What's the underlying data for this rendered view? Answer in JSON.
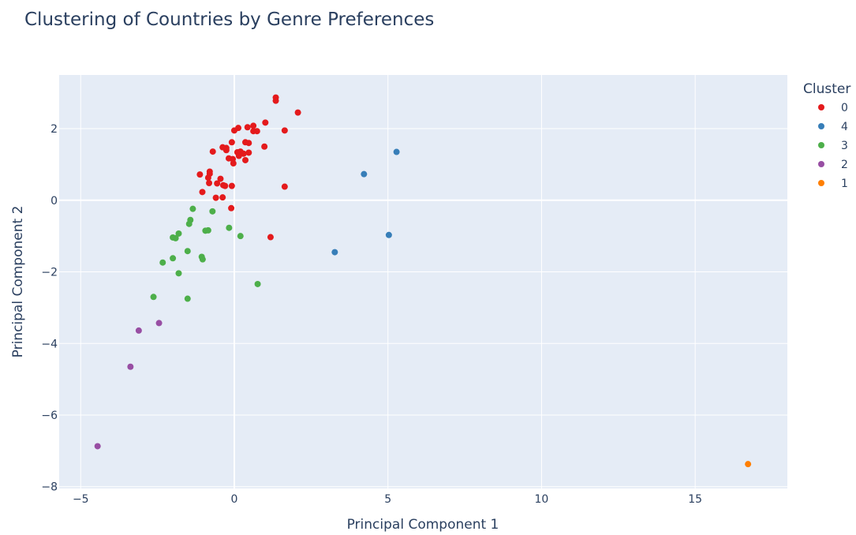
{
  "chart_data": {
    "type": "scatter",
    "title": "Clustering of Countries by Genre Preferences",
    "xlabel": "Principal Component 1",
    "ylabel": "Principal Component 2",
    "xlim": [
      -5.7,
      18.0
    ],
    "ylim": [
      -8.05,
      3.5
    ],
    "x_ticks": [
      -5,
      0,
      5,
      10,
      15
    ],
    "x_tick_labels": [
      "−5",
      "0",
      "5",
      "10",
      "15"
    ],
    "y_ticks": [
      2,
      0,
      -2,
      -4,
      -6,
      -8
    ],
    "y_tick_labels": [
      "2",
      "0",
      "−2",
      "−4",
      "−6",
      "−8"
    ],
    "grid": true,
    "legend_title": "Cluster",
    "legend_position": "right",
    "series": [
      {
        "name": "0",
        "color": "#e41a1c",
        "points": [
          [
            1.35,
            2.87
          ],
          [
            1.35,
            2.78
          ],
          [
            2.07,
            2.45
          ],
          [
            1.01,
            2.17
          ],
          [
            0.13,
            2.02
          ],
          [
            0.0,
            1.95
          ],
          [
            0.43,
            2.04
          ],
          [
            0.62,
            2.08
          ],
          [
            0.62,
            1.93
          ],
          [
            0.74,
            1.93
          ],
          [
            1.64,
            1.95
          ],
          [
            -0.08,
            1.62
          ],
          [
            0.36,
            1.62
          ],
          [
            0.47,
            1.6
          ],
          [
            0.98,
            1.5
          ],
          [
            -0.38,
            1.48
          ],
          [
            -0.26,
            1.46
          ],
          [
            -0.7,
            1.36
          ],
          [
            -0.26,
            1.4
          ],
          [
            0.1,
            1.34
          ],
          [
            0.2,
            1.36
          ],
          [
            0.3,
            1.3
          ],
          [
            0.47,
            1.33
          ],
          [
            0.15,
            1.24
          ],
          [
            -0.18,
            1.17
          ],
          [
            -0.05,
            1.15
          ],
          [
            0.36,
            1.12
          ],
          [
            -0.03,
            1.03
          ],
          [
            -1.12,
            0.72
          ],
          [
            -0.8,
            0.8
          ],
          [
            -0.8,
            0.74
          ],
          [
            -0.85,
            0.63
          ],
          [
            -0.45,
            0.6
          ],
          [
            -0.56,
            0.47
          ],
          [
            -0.82,
            0.48
          ],
          [
            -0.36,
            0.42
          ],
          [
            -0.3,
            0.4
          ],
          [
            -0.08,
            0.4
          ],
          [
            1.64,
            0.38
          ],
          [
            -1.04,
            0.23
          ],
          [
            -0.6,
            0.07
          ],
          [
            -0.38,
            0.08
          ],
          [
            -0.1,
            -0.22
          ],
          [
            1.18,
            -1.03
          ]
        ]
      },
      {
        "name": "4",
        "color": "#377eb8",
        "points": [
          [
            5.28,
            1.35
          ],
          [
            4.22,
            0.73
          ],
          [
            5.03,
            -0.97
          ],
          [
            3.27,
            -1.45
          ]
        ]
      },
      {
        "name": "3",
        "color": "#4daf4a",
        "points": [
          [
            -1.35,
            -0.24
          ],
          [
            -1.43,
            -0.55
          ],
          [
            -1.47,
            -0.66
          ],
          [
            -0.71,
            -0.31
          ],
          [
            -1.81,
            -0.93
          ],
          [
            -2.0,
            -1.04
          ],
          [
            -1.91,
            -1.06
          ],
          [
            -0.94,
            -0.85
          ],
          [
            -0.85,
            -0.84
          ],
          [
            -0.17,
            -0.77
          ],
          [
            0.2,
            -1.0
          ],
          [
            -1.52,
            -1.42
          ],
          [
            -1.06,
            -1.58
          ],
          [
            -1.03,
            -1.65
          ],
          [
            -2.0,
            -1.62
          ],
          [
            -2.33,
            -1.74
          ],
          [
            -1.81,
            -2.04
          ],
          [
            0.76,
            -2.34
          ],
          [
            -2.63,
            -2.7
          ],
          [
            -1.52,
            -2.75
          ]
        ]
      },
      {
        "name": "2",
        "color": "#984ea3",
        "points": [
          [
            -2.45,
            -3.43
          ],
          [
            -3.11,
            -3.64
          ],
          [
            -3.38,
            -4.65
          ],
          [
            -4.45,
            -6.87
          ]
        ]
      },
      {
        "name": "1",
        "color": "#ff7f00",
        "points": [
          [
            16.72,
            -7.37
          ]
        ]
      }
    ]
  }
}
